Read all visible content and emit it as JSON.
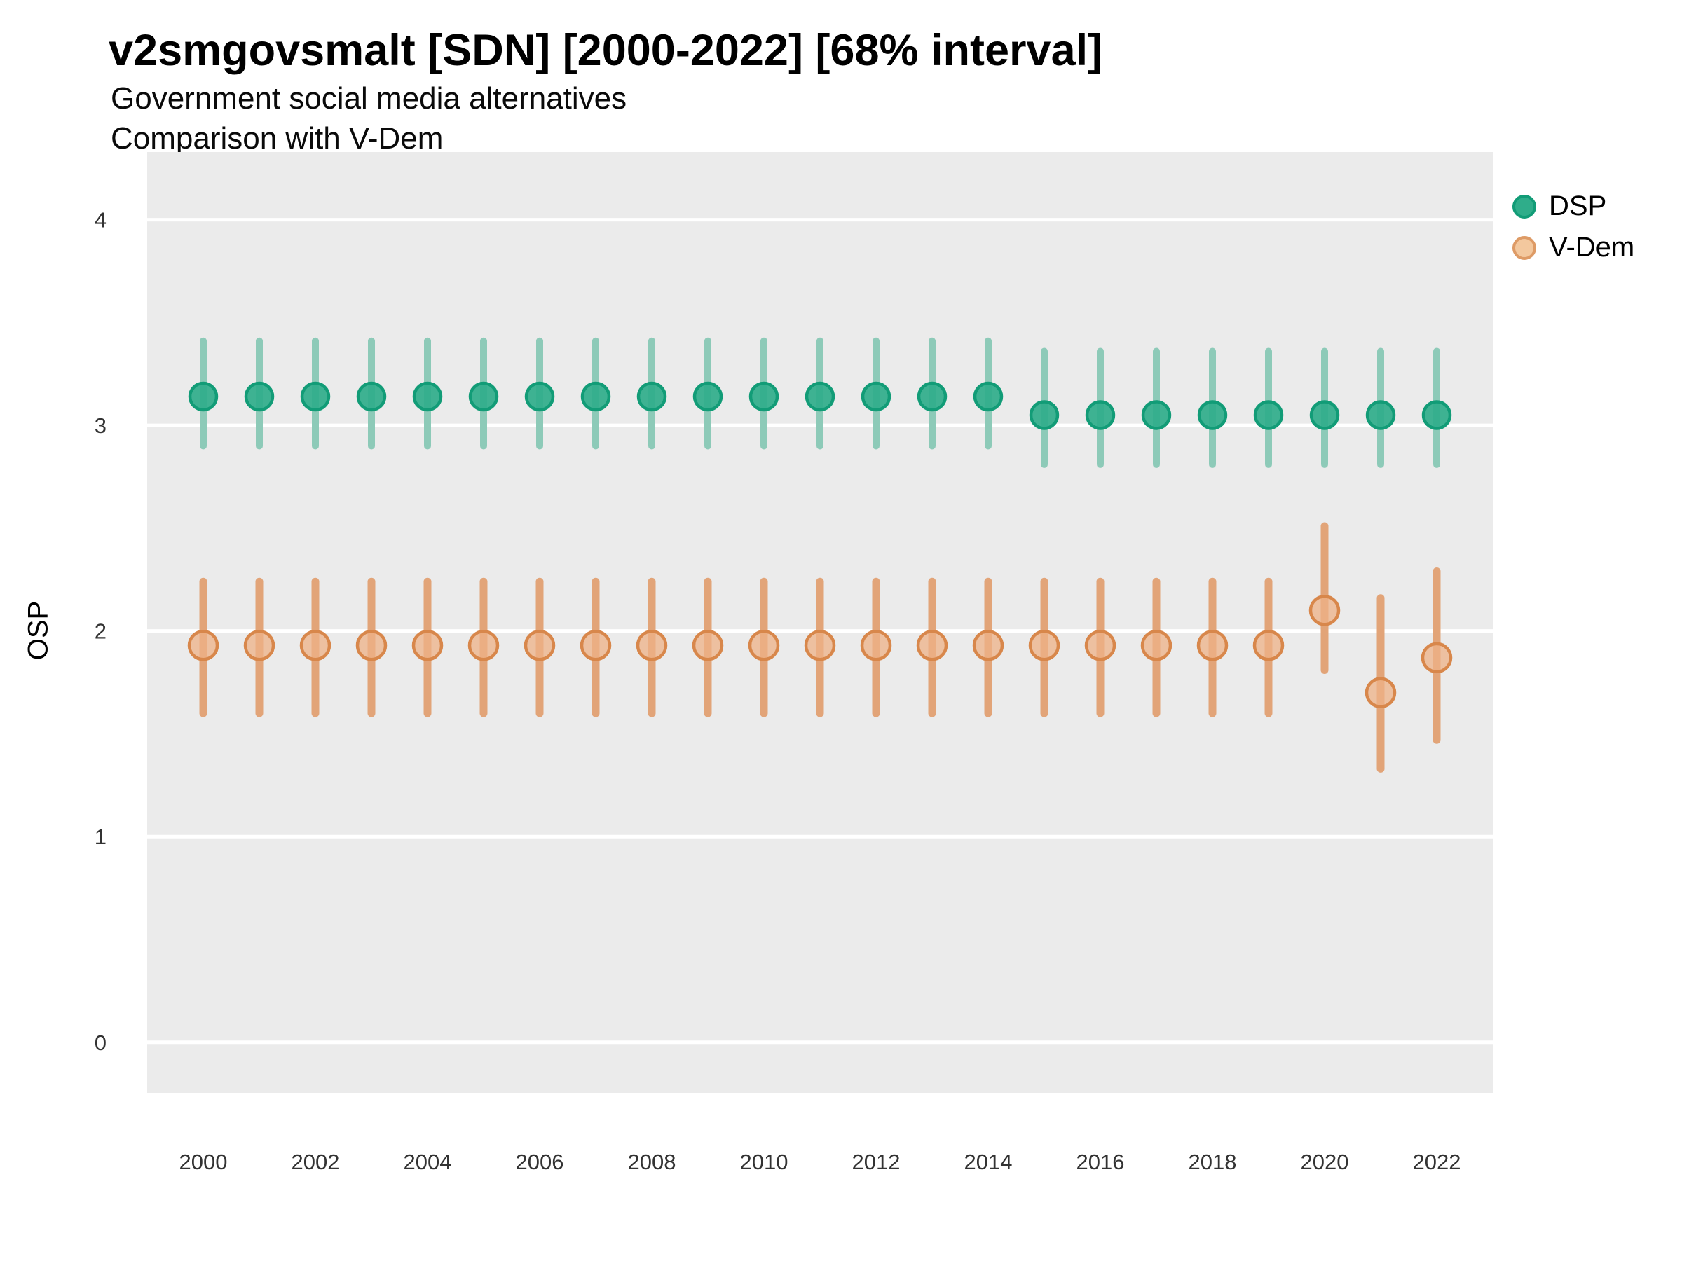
{
  "title": "v2smgovsmalt [SDN] [2000-2022] [68% interval]",
  "subtitle1": "Government social media alternatives",
  "subtitle2": "Comparison with V-Dem",
  "ylabel": "OSP",
  "legend": {
    "items": [
      {
        "label": "DSP",
        "color_key": "dsp"
      },
      {
        "label": "V-Dem",
        "color_key": "vdem"
      }
    ]
  },
  "colors": {
    "panel_bg": "#EBEBEB",
    "grid": "#FFFFFF",
    "tick_text": "#333333",
    "dsp": {
      "stroke": "#129C77",
      "fill": "#2FAD8A",
      "fill_opacity": 0.92,
      "line": "#8DCAB8",
      "legend_fill": "#2FAD8A",
      "legend_stroke": "#129C77"
    },
    "vdem": {
      "stroke": "#D8874B",
      "fill": "#EDB287",
      "fill_opacity": 0.75,
      "line": "#E2A478",
      "legend_fill": "#F3C89E",
      "legend_stroke": "#DE9B66"
    }
  },
  "chart_data": {
    "type": "scatter",
    "subtype": "pointrange",
    "interval": "68%",
    "title": "v2smgovsmalt [SDN] [2000-2022] [68% interval]",
    "xlabel": "",
    "ylabel": "OSP",
    "ylim": [
      0,
      4
    ],
    "yticks": [
      4,
      3,
      2,
      1,
      0
    ],
    "xticks": [
      2000,
      2002,
      2004,
      2006,
      2008,
      2010,
      2012,
      2014,
      2016,
      2018,
      2020,
      2022
    ],
    "grid": "major-horizontal-only",
    "legend_position": "right",
    "x": [
      2000,
      2001,
      2002,
      2003,
      2004,
      2005,
      2006,
      2007,
      2008,
      2009,
      2010,
      2011,
      2012,
      2013,
      2014,
      2015,
      2016,
      2017,
      2018,
      2019,
      2020,
      2021,
      2022
    ],
    "series": [
      {
        "name": "DSP",
        "color_key": "dsp",
        "est": [
          3.14,
          3.14,
          3.14,
          3.14,
          3.14,
          3.14,
          3.14,
          3.14,
          3.14,
          3.14,
          3.14,
          3.14,
          3.14,
          3.14,
          3.14,
          3.05,
          3.05,
          3.05,
          3.05,
          3.05,
          3.05,
          3.05,
          3.05
        ],
        "lo": [
          2.9,
          2.9,
          2.9,
          2.9,
          2.9,
          2.9,
          2.9,
          2.9,
          2.9,
          2.9,
          2.9,
          2.9,
          2.9,
          2.9,
          2.9,
          2.81,
          2.81,
          2.81,
          2.81,
          2.81,
          2.81,
          2.81,
          2.81
        ],
        "hi": [
          3.41,
          3.41,
          3.41,
          3.41,
          3.41,
          3.41,
          3.41,
          3.41,
          3.41,
          3.41,
          3.41,
          3.41,
          3.41,
          3.41,
          3.41,
          3.36,
          3.36,
          3.36,
          3.36,
          3.36,
          3.36,
          3.36,
          3.36
        ]
      },
      {
        "name": "V-Dem",
        "color_key": "vdem",
        "est": [
          1.93,
          1.93,
          1.93,
          1.93,
          1.93,
          1.93,
          1.93,
          1.93,
          1.93,
          1.93,
          1.93,
          1.93,
          1.93,
          1.93,
          1.93,
          1.93,
          1.93,
          1.93,
          1.93,
          1.93,
          2.1,
          1.7,
          1.87
        ],
        "lo": [
          1.6,
          1.6,
          1.6,
          1.6,
          1.6,
          1.6,
          1.6,
          1.6,
          1.6,
          1.6,
          1.6,
          1.6,
          1.6,
          1.6,
          1.6,
          1.6,
          1.6,
          1.6,
          1.6,
          1.6,
          1.81,
          1.33,
          1.47
        ],
        "hi": [
          2.24,
          2.24,
          2.24,
          2.24,
          2.24,
          2.24,
          2.24,
          2.24,
          2.24,
          2.24,
          2.24,
          2.24,
          2.24,
          2.24,
          2.24,
          2.24,
          2.24,
          2.24,
          2.24,
          2.24,
          2.51,
          2.16,
          2.29
        ]
      }
    ]
  }
}
